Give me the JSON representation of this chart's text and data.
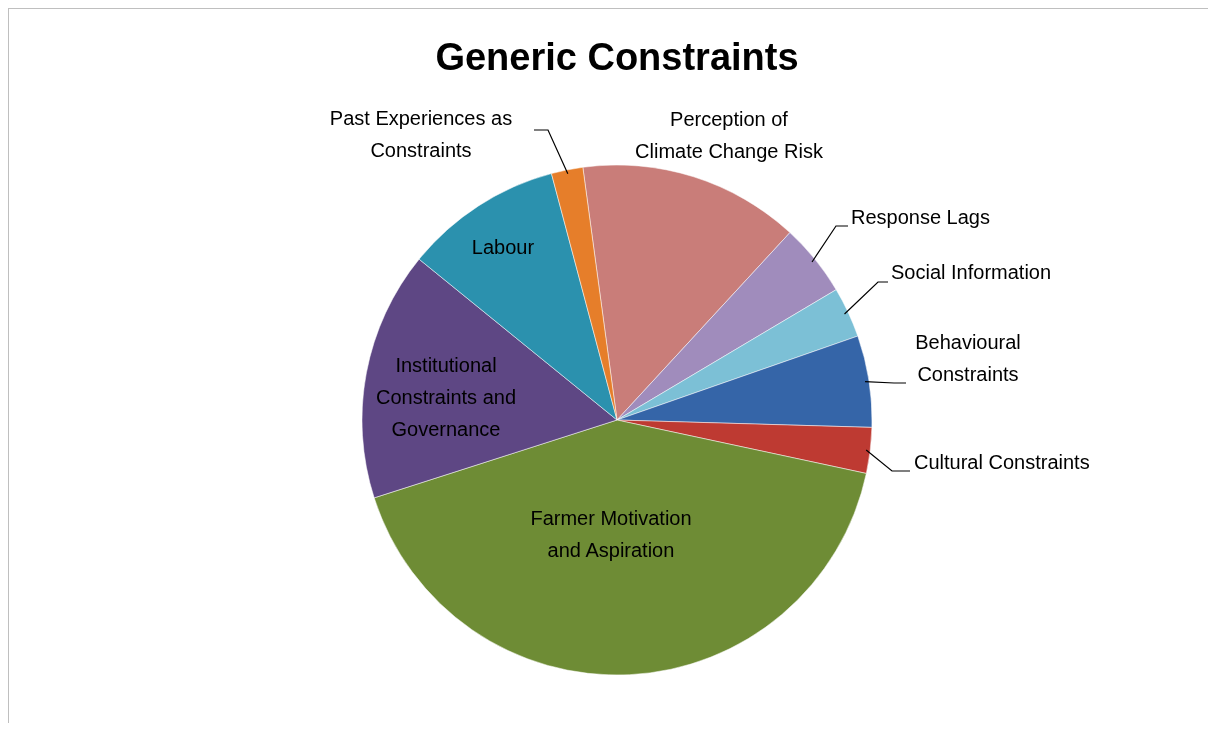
{
  "chart_data": {
    "type": "pie",
    "title": "Generic Constraints",
    "categories": [
      "Perception of Climate Change Risk",
      "Response Lags",
      "Social Information",
      "Behavioural Constraints",
      "Cultural Constraints",
      "Farmer Motivation and Aspiration",
      "Institutional Constraints and Governance",
      "Labour",
      "Past Experiences as Constraints"
    ],
    "values": [
      14,
      4.6,
      3.2,
      5.8,
      2.9,
      41.7,
      15.8,
      10,
      2
    ],
    "colors": [
      "#c97d79",
      "#a08cbc",
      "#7cc0d6",
      "#3565a8",
      "#be3a32",
      "#6e8c35",
      "#5e4784",
      "#2b91ae",
      "#e67e2a"
    ]
  }
}
